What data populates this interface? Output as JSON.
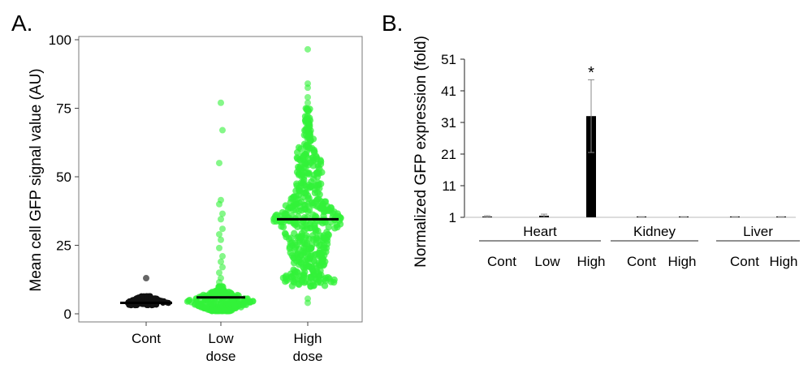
{
  "colors": {
    "control": "#111111",
    "control_outlier": "#666666",
    "green": "#33f23a",
    "bar": "#000000",
    "errorbar": "#888888"
  },
  "panel_a": {
    "label": "A.",
    "ylabel": "Mean cell GFP signal value (AU)"
  },
  "panel_b": {
    "label": "B.",
    "ylabel": "Normalized GFP expression (fold)",
    "significance_mark": "*",
    "groups": [
      "Heart",
      "Kidney",
      "Liver"
    ],
    "x_labels": [
      "Cont",
      "Low",
      "High",
      "Cont",
      "High",
      "Cont",
      "High"
    ]
  },
  "chart_data": [
    {
      "type": "scatter",
      "subtype": "beeswarm",
      "ylabel": "Mean cell GFP signal value (AU)",
      "ylim": [
        0,
        100
      ],
      "yticks": [
        0,
        25,
        50,
        75,
        100
      ],
      "categories": [
        "Cont",
        "Low dose",
        "High dose"
      ],
      "tick_label_lines": [
        [
          "Cont"
        ],
        [
          "Low",
          "dose"
        ],
        [
          "High",
          "dose"
        ]
      ],
      "series": [
        {
          "name": "Cont",
          "color": "#111111",
          "mean": 4,
          "spread_center": 4,
          "range": [
            3,
            6.5
          ],
          "outliers": [
            13
          ]
        },
        {
          "name": "Low dose",
          "color": "#33f23a",
          "mean": 6,
          "spread_center": 4.5,
          "range": [
            1,
            10
          ],
          "outliers": [
            77,
            67,
            55,
            41.5,
            40,
            36.5,
            34.5,
            31,
            29,
            27,
            24,
            21,
            19,
            17,
            15,
            13,
            11.5,
            10
          ]
        },
        {
          "name": "High dose",
          "color": "#33f23a",
          "mean": 34.5,
          "spread_center": 34,
          "range": [
            10,
            75
          ],
          "outliers": [
            96.5,
            84,
            82.5,
            79,
            77,
            5.5,
            4
          ]
        }
      ],
      "grid": false
    },
    {
      "type": "bar",
      "ylabel": "Normalized GFP expression (fold)",
      "ylim": [
        1,
        51
      ],
      "yticks": [
        1,
        11,
        21,
        31,
        41,
        51
      ],
      "categories": [
        "Heart Cont",
        "Heart Low",
        "Heart High",
        "Kidney Cont",
        "Kidney High",
        "Liver Cont",
        "Liver High"
      ],
      "values": [
        1,
        1.5,
        33,
        1,
        1,
        1,
        1
      ],
      "error": [
        0.5,
        0.5,
        11.5,
        0.2,
        0.2,
        0.2,
        0.2
      ],
      "annotations": [
        {
          "category": "Heart High",
          "text": "*"
        }
      ],
      "grid": false
    }
  ]
}
